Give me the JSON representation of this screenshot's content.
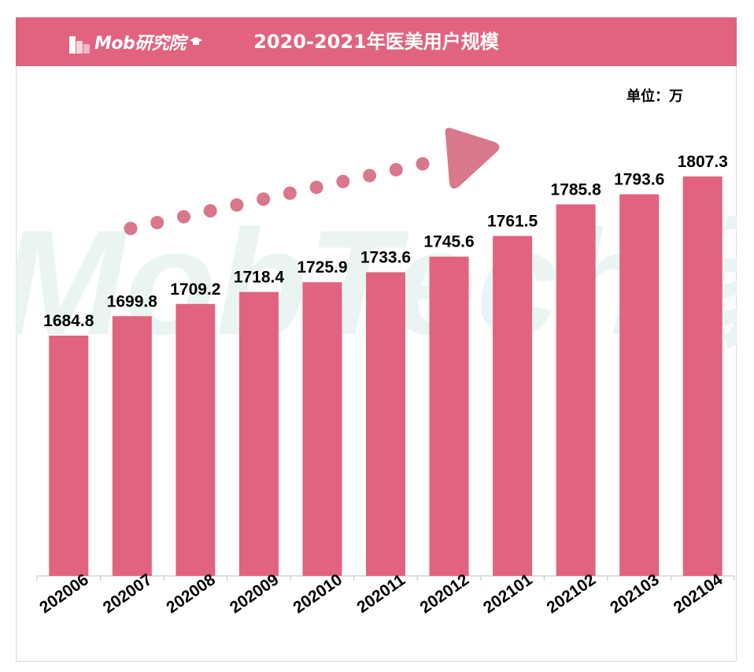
{
  "header": {
    "logo_text": "Mob研究院",
    "title": "2020-2021年医美用户规模"
  },
  "unit_label": "单位：万",
  "watermark_text": "MobTech 袤博",
  "colors": {
    "accent": "#e2637f",
    "bar": "#e2637f",
    "arrow": "#d9778b",
    "watermark": "#e6f3f1"
  },
  "chart_data": {
    "type": "bar",
    "title": "2020-2021年医美用户规模",
    "xlabel": "",
    "ylabel": "单位：万",
    "categories": [
      "202006",
      "202007",
      "202008",
      "202009",
      "202010",
      "202011",
      "202012",
      "202101",
      "202102",
      "202103",
      "202104"
    ],
    "values": [
      1684.8,
      1699.8,
      1709.2,
      1718.4,
      1725.9,
      1733.6,
      1745.6,
      1761.5,
      1785.8,
      1793.6,
      1807.3
    ],
    "value_labels": [
      "1684.8",
      "1699.8",
      "1709.2",
      "1718.4",
      "1725.9",
      "1733.6",
      "1745.6",
      "1761.5",
      "1785.8",
      "1793.6",
      "1807.3"
    ],
    "grid": false,
    "legend": "none",
    "annotation": "dotted upward trend arrow"
  }
}
